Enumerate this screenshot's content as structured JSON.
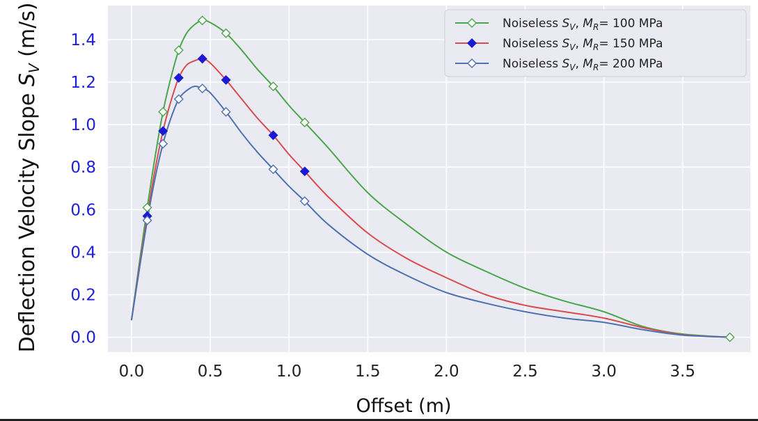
{
  "chart_data": {
    "type": "line",
    "xlabel": "Offset (m)",
    "ylabel": "Deflection Velocity Slope S_V (m/s)",
    "ylabel_main": "Deflection Velocity Slope",
    "ylabel_symbol": "S",
    "ylabel_sub": "V",
    "ylabel_unit": "(m/s)",
    "xlim": [
      -0.15,
      3.93
    ],
    "ylim": [
      -0.07,
      1.56
    ],
    "xticks": [
      0.0,
      0.5,
      1.0,
      1.5,
      2.0,
      2.5,
      3.0,
      3.5
    ],
    "xtick_labels": [
      "0.0",
      "0.5",
      "1.0",
      "1.5",
      "2.0",
      "2.5",
      "3.0",
      "3.5"
    ],
    "yticks": [
      0.0,
      0.2,
      0.4,
      0.6,
      0.8,
      1.0,
      1.2,
      1.4
    ],
    "ytick_labels": [
      "0.0",
      "0.2",
      "0.4",
      "0.6",
      "0.8",
      "1.0",
      "1.2",
      "1.4"
    ],
    "grid": true,
    "legend_position": "top-right",
    "series": [
      {
        "name": "Noiseless S_V, M_R= 100 MPa",
        "legend_prefix": "Noiseless ",
        "legend_suffix": "= 100 MPa",
        "color": "#4aa64a",
        "marker_fill": "#ffffff",
        "x": [
          0.0,
          0.05,
          0.1,
          0.15,
          0.2,
          0.25,
          0.3,
          0.35,
          0.4,
          0.45,
          0.5,
          0.6,
          0.7,
          0.8,
          0.9,
          1.0,
          1.1,
          1.25,
          1.5,
          1.75,
          2.0,
          2.25,
          2.5,
          2.75,
          3.0,
          3.25,
          3.5,
          3.8
        ],
        "values": [
          0.08,
          0.35,
          0.61,
          0.85,
          1.06,
          1.22,
          1.35,
          1.43,
          1.47,
          1.49,
          1.48,
          1.43,
          1.35,
          1.26,
          1.18,
          1.09,
          1.01,
          0.89,
          0.68,
          0.53,
          0.4,
          0.31,
          0.23,
          0.17,
          0.12,
          0.05,
          0.015,
          0.0
        ],
        "marker_x": [
          0.1,
          0.2,
          0.3,
          0.45,
          0.6,
          0.9,
          1.1,
          3.8
        ],
        "marker_y": [
          0.61,
          1.06,
          1.35,
          1.49,
          1.43,
          1.18,
          1.01,
          0.0
        ]
      },
      {
        "name": "Noiseless S_V, M_R= 150 MPa",
        "legend_prefix": "Noiseless ",
        "legend_suffix": "= 150 MPa",
        "color": "#d94c4c",
        "marker_fill": "#1a1ad6",
        "x": [
          0.0,
          0.05,
          0.1,
          0.15,
          0.2,
          0.25,
          0.3,
          0.35,
          0.4,
          0.45,
          0.5,
          0.6,
          0.7,
          0.8,
          0.9,
          1.0,
          1.1,
          1.25,
          1.5,
          1.75,
          2.0,
          2.25,
          2.5,
          2.75,
          3.0,
          3.25,
          3.5,
          3.8
        ],
        "values": [
          0.08,
          0.33,
          0.57,
          0.79,
          0.97,
          1.11,
          1.22,
          1.28,
          1.3,
          1.31,
          1.29,
          1.21,
          1.12,
          1.03,
          0.95,
          0.86,
          0.78,
          0.66,
          0.49,
          0.37,
          0.28,
          0.2,
          0.15,
          0.12,
          0.09,
          0.045,
          0.012,
          0.0
        ],
        "marker_x": [
          0.1,
          0.2,
          0.3,
          0.45,
          0.6,
          0.9,
          1.1
        ],
        "marker_y": [
          0.57,
          0.97,
          1.22,
          1.31,
          1.21,
          0.95,
          0.78
        ]
      },
      {
        "name": "Noiseless S_V, M_R= 200 MPa",
        "legend_prefix": "Noiseless ",
        "legend_suffix": "= 200 MPa",
        "color": "#4c72b0",
        "marker_fill": "#ffffff",
        "x": [
          0.0,
          0.05,
          0.1,
          0.15,
          0.2,
          0.25,
          0.3,
          0.35,
          0.4,
          0.45,
          0.5,
          0.6,
          0.7,
          0.8,
          0.9,
          1.0,
          1.1,
          1.25,
          1.5,
          1.75,
          2.0,
          2.25,
          2.5,
          2.75,
          3.0,
          3.25,
          3.5,
          3.8
        ],
        "values": [
          0.08,
          0.32,
          0.55,
          0.75,
          0.91,
          1.03,
          1.12,
          1.16,
          1.18,
          1.17,
          1.15,
          1.06,
          0.96,
          0.87,
          0.79,
          0.71,
          0.64,
          0.53,
          0.39,
          0.29,
          0.21,
          0.16,
          0.12,
          0.09,
          0.07,
          0.035,
          0.01,
          0.0
        ],
        "marker_x": [
          0.1,
          0.2,
          0.3,
          0.45,
          0.6,
          0.9,
          1.1
        ],
        "marker_y": [
          0.55,
          0.91,
          1.12,
          1.17,
          1.06,
          0.79,
          0.64
        ]
      }
    ]
  },
  "legend_symbol": "S",
  "legend_symbol_sub": "V",
  "legend_param": "M",
  "legend_param_sub": "R",
  "legend_comma": ", "
}
